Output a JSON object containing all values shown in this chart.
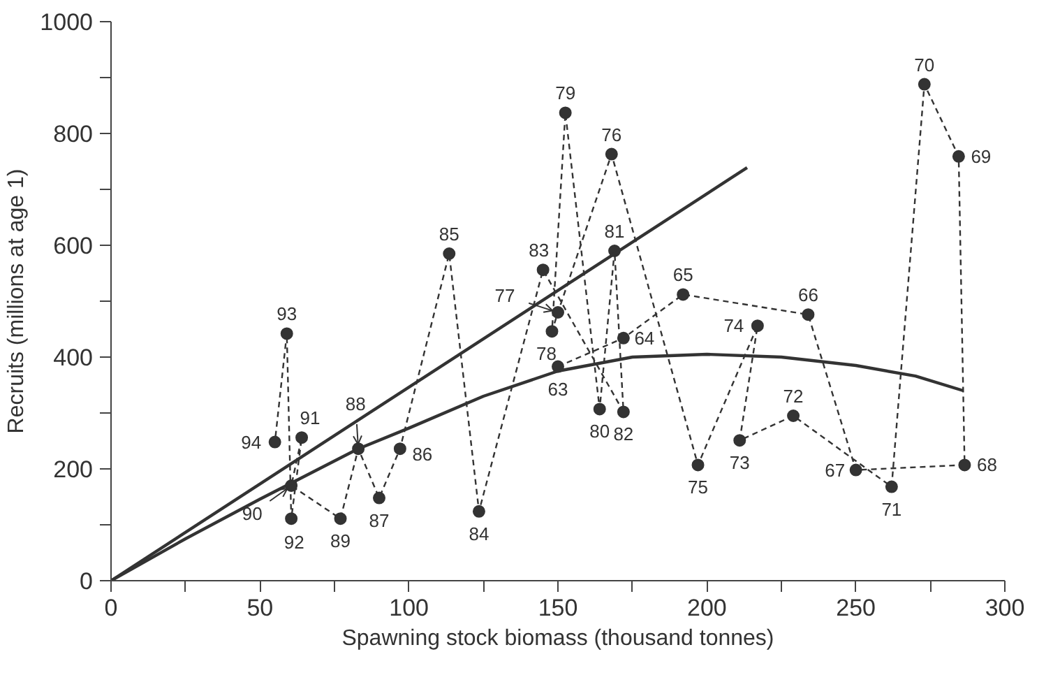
{
  "chart_data": {
    "type": "line",
    "xlabel": "Spawning stock biomass (thousand tonnes)",
    "ylabel": "Recruits (millions at age 1)",
    "xlim": [
      0,
      300
    ],
    "ylim": [
      0,
      1000
    ],
    "xticks": [
      0,
      {
        "value": 25,
        "label": null
      },
      50,
      {
        "value": 75,
        "label": null
      },
      100,
      {
        "value": 125,
        "label": null
      },
      150,
      {
        "value": 175,
        "label": null
      },
      200,
      {
        "value": 225,
        "label": null
      },
      250,
      {
        "value": 275,
        "label": null
      },
      300
    ],
    "yticks": [
      0,
      {
        "value": 100,
        "label": null
      },
      200,
      {
        "value": 300,
        "label": null
      },
      400,
      {
        "value": 500,
        "label": null
      },
      600,
      {
        "value": 700,
        "label": null
      },
      800,
      {
        "value": 900,
        "label": null
      },
      1000
    ],
    "grid": false,
    "series": [
      {
        "color": "#333333",
        "line_style": "dashed",
        "marker": "circle",
        "x": [
          150,
          172,
          192,
          234,
          250,
          286.5,
          284.5,
          273,
          262,
          229,
          211,
          217,
          197,
          168,
          150,
          148,
          152.5,
          164,
          169,
          172,
          145,
          123.5,
          113.5,
          97,
          90,
          83,
          77,
          60.5,
          64,
          60.5,
          59,
          55
        ],
        "values": [
          383,
          434,
          512,
          476,
          198,
          207,
          759,
          888,
          168,
          295,
          251,
          456,
          207,
          763,
          480,
          446,
          837,
          307,
          590,
          302,
          556,
          124,
          585,
          236,
          148,
          236,
          111,
          170,
          256,
          111,
          442,
          248
        ]
      },
      {
        "color": "#333333",
        "line_style": "solid",
        "marker": "none",
        "x": [
          0,
          213.5
        ],
        "values": [
          0,
          739
        ]
      },
      {
        "color": "#333333",
        "line_style": "solid",
        "marker": "none",
        "x": [
          0,
          25,
          50,
          83,
          100,
          125,
          150,
          175,
          200,
          225,
          250,
          270,
          286
        ],
        "values": [
          0,
          75,
          146,
          236,
          273,
          330,
          375,
          400,
          405,
          400,
          385,
          366,
          340
        ]
      }
    ],
    "annotations": [
      {
        "text": "63",
        "x": 150,
        "y": 383
      },
      {
        "text": "64",
        "x": 172,
        "y": 434
      },
      {
        "text": "65",
        "x": 192,
        "y": 512
      },
      {
        "text": "66",
        "x": 234,
        "y": 476
      },
      {
        "text": "67",
        "x": 250,
        "y": 198
      },
      {
        "text": "68",
        "x": 286.5,
        "y": 207
      },
      {
        "text": "69",
        "x": 284.5,
        "y": 759
      },
      {
        "text": "70",
        "x": 273,
        "y": 888
      },
      {
        "text": "71",
        "x": 262,
        "y": 168
      },
      {
        "text": "72",
        "x": 229,
        "y": 295
      },
      {
        "text": "73",
        "x": 211,
        "y": 251
      },
      {
        "text": "74",
        "x": 217,
        "y": 456
      },
      {
        "text": "75",
        "x": 197,
        "y": 207
      },
      {
        "text": "76",
        "x": 168,
        "y": 763
      },
      {
        "text": "77",
        "x": 150,
        "y": 480
      },
      {
        "text": "78",
        "x": 148,
        "y": 446
      },
      {
        "text": "79",
        "x": 152.5,
        "y": 837
      },
      {
        "text": "80",
        "x": 164,
        "y": 307
      },
      {
        "text": "81",
        "x": 169,
        "y": 590
      },
      {
        "text": "82",
        "x": 172,
        "y": 302
      },
      {
        "text": "83",
        "x": 145,
        "y": 556
      },
      {
        "text": "84",
        "x": 123.5,
        "y": 124
      },
      {
        "text": "85",
        "x": 113.5,
        "y": 585
      },
      {
        "text": "86",
        "x": 97,
        "y": 236
      },
      {
        "text": "87",
        "x": 90,
        "y": 148
      },
      {
        "text": "88",
        "x": 83,
        "y": 236
      },
      {
        "text": "89",
        "x": 77,
        "y": 111
      },
      {
        "text": "90",
        "x": 60.5,
        "y": 170
      },
      {
        "text": "91",
        "x": 64,
        "y": 256
      },
      {
        "text": "92",
        "x": 60.5,
        "y": 111
      },
      {
        "text": "93",
        "x": 59,
        "y": 442
      },
      {
        "text": "94",
        "x": 55,
        "y": 248
      }
    ]
  }
}
